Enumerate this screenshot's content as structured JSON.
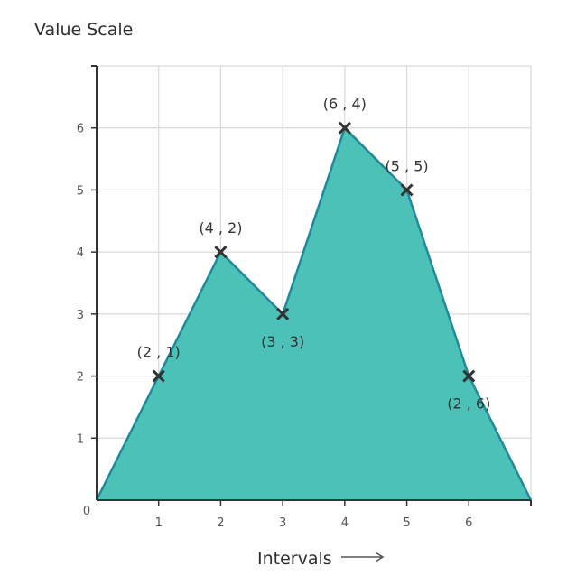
{
  "chart_data": {
    "type": "area",
    "ylabel": "Value Scale",
    "xlabel": "Intervals",
    "xlim": [
      0,
      7
    ],
    "ylim": [
      0,
      7
    ],
    "x_ticks": [
      1,
      2,
      3,
      4,
      5,
      6
    ],
    "y_ticks": [
      1,
      2,
      3,
      4,
      5,
      6
    ],
    "origin_label": "0",
    "grid": true,
    "fill_color": "#4cc1b8",
    "line_color": "#1f8a9c",
    "marker": "x",
    "marker_color": "#333333",
    "points": [
      {
        "x": 0,
        "y": 0,
        "marker": false
      },
      {
        "x": 1,
        "y": 2,
        "label": "(2 , 1)",
        "label_pos": "above"
      },
      {
        "x": 2,
        "y": 4,
        "label": "(4 , 2)",
        "label_pos": "above"
      },
      {
        "x": 3,
        "y": 3,
        "label": "(3 , 3)",
        "label_pos": "below"
      },
      {
        "x": 4,
        "y": 6,
        "label": "(6 , 4)",
        "label_pos": "above"
      },
      {
        "x": 5,
        "y": 5,
        "label": "(5 , 5)",
        "label_pos": "above"
      },
      {
        "x": 6,
        "y": 2,
        "label": "(2 , 6)",
        "label_pos": "below"
      },
      {
        "x": 7,
        "y": 0,
        "marker": false
      }
    ]
  }
}
